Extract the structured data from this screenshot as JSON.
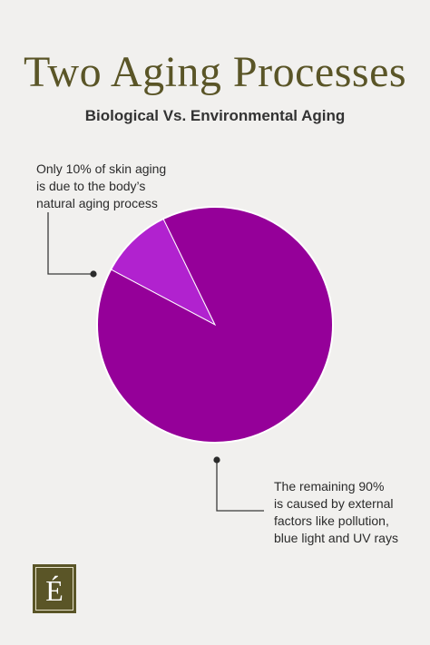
{
  "chart_data": {
    "type": "pie",
    "title": "Two Aging Processes",
    "subtitle": "Biological Vs. Environmental Aging",
    "slices": [
      {
        "label": "Only 10% of skin aging is due to the body’s natural aging process",
        "value": 10,
        "color": "#b122cf"
      },
      {
        "label": "The remaining 90% is caused by external factors like pollution, blue light and UV rays",
        "value": 90,
        "color": "#950099"
      }
    ],
    "annotations": [
      {
        "lines": [
          "Only 10% of skin aging",
          "is due to the body’s",
          "natural aging process"
        ]
      },
      {
        "lines": [
          "The remaining 90%",
          "is caused by external",
          "factors like pollution,",
          "blue light and UV rays"
        ]
      }
    ]
  },
  "logo": {
    "glyph": "É",
    "name": "letter-e-acute-logo"
  },
  "colors": {
    "title": "#5a5527",
    "background": "#f1f0ee",
    "leader": "#3a3a3a"
  }
}
